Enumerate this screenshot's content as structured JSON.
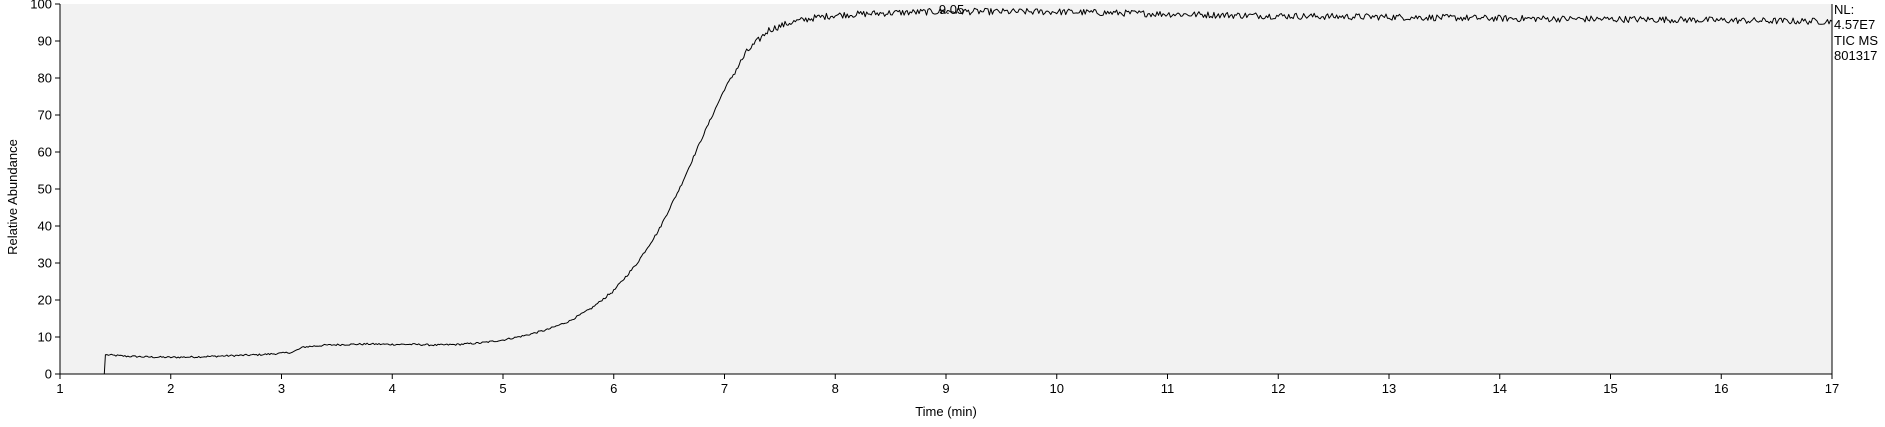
{
  "chart_data": {
    "type": "line",
    "title": "",
    "xlabel": "Time (min)",
    "ylabel": "Relative Abundance",
    "xlim": [
      1,
      17
    ],
    "ylim": [
      0,
      100
    ],
    "xticks": [
      1,
      2,
      3,
      4,
      5,
      6,
      7,
      8,
      9,
      10,
      11,
      12,
      13,
      14,
      15,
      16,
      17
    ],
    "yticks": [
      0,
      10,
      20,
      30,
      40,
      50,
      60,
      70,
      80,
      90,
      100
    ],
    "grid": false,
    "plot_background": "#f2f2f2",
    "line_color": "#000000",
    "peak_label": {
      "x": 9.05,
      "text": "9.05"
    },
    "info": [
      "NL:",
      "4.57E7",
      "TIC  MS",
      "801317"
    ],
    "series": [
      {
        "name": "",
        "x": [
          1.0,
          1.2,
          1.4,
          1.41,
          1.6,
          1.8,
          2.0,
          2.2,
          2.4,
          2.6,
          2.8,
          3.0,
          3.1,
          3.2,
          3.4,
          3.6,
          3.8,
          4.0,
          4.2,
          4.4,
          4.6,
          4.8,
          5.0,
          5.2,
          5.4,
          5.6,
          5.8,
          6.0,
          6.2,
          6.4,
          6.6,
          6.8,
          7.0,
          7.2,
          7.4,
          7.6,
          7.8,
          8.0,
          8.5,
          9.0,
          9.5,
          10.0,
          10.5,
          11.0,
          11.5,
          12.0,
          12.5,
          13.0,
          13.5,
          14.0,
          14.5,
          15.0,
          15.5,
          16.0,
          16.5,
          17.0
        ],
        "y": [
          0.0,
          0.0,
          0.0,
          5.2,
          4.8,
          4.6,
          4.5,
          4.6,
          4.8,
          5.0,
          5.2,
          5.6,
          5.9,
          7.3,
          7.8,
          8.0,
          8.1,
          8.0,
          8.0,
          7.8,
          8.0,
          8.4,
          9.2,
          10.4,
          12.0,
          14.3,
          17.8,
          22.5,
          29.5,
          38.5,
          50.5,
          64.0,
          77.0,
          87.0,
          93.0,
          95.0,
          96.2,
          97.0,
          97.6,
          98.0,
          97.9,
          97.9,
          97.6,
          97.3,
          97.0,
          96.8,
          96.6,
          96.5,
          96.3,
          96.1,
          96.0,
          95.9,
          95.8,
          95.6,
          95.4,
          95.3
        ]
      }
    ]
  }
}
